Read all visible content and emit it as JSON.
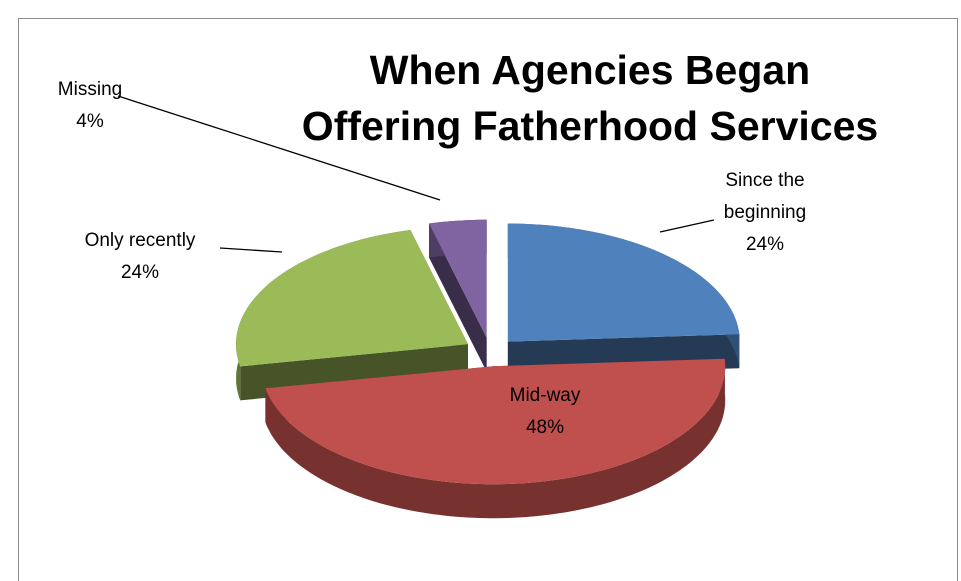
{
  "chart_data": {
    "type": "pie",
    "title": "When Agencies Began Offering Fatherhood Services",
    "categories": [
      "Since the beginning",
      "Mid-way",
      "Only recently",
      "Missing"
    ],
    "values": [
      24,
      48,
      24,
      4
    ],
    "value_labels": [
      "24%",
      "48%",
      "24%",
      "4%"
    ],
    "colors": [
      "#4f81bd",
      "#c0504d",
      "#9bbb59",
      "#8064a2"
    ],
    "exploded": true,
    "three_d": true
  }
}
